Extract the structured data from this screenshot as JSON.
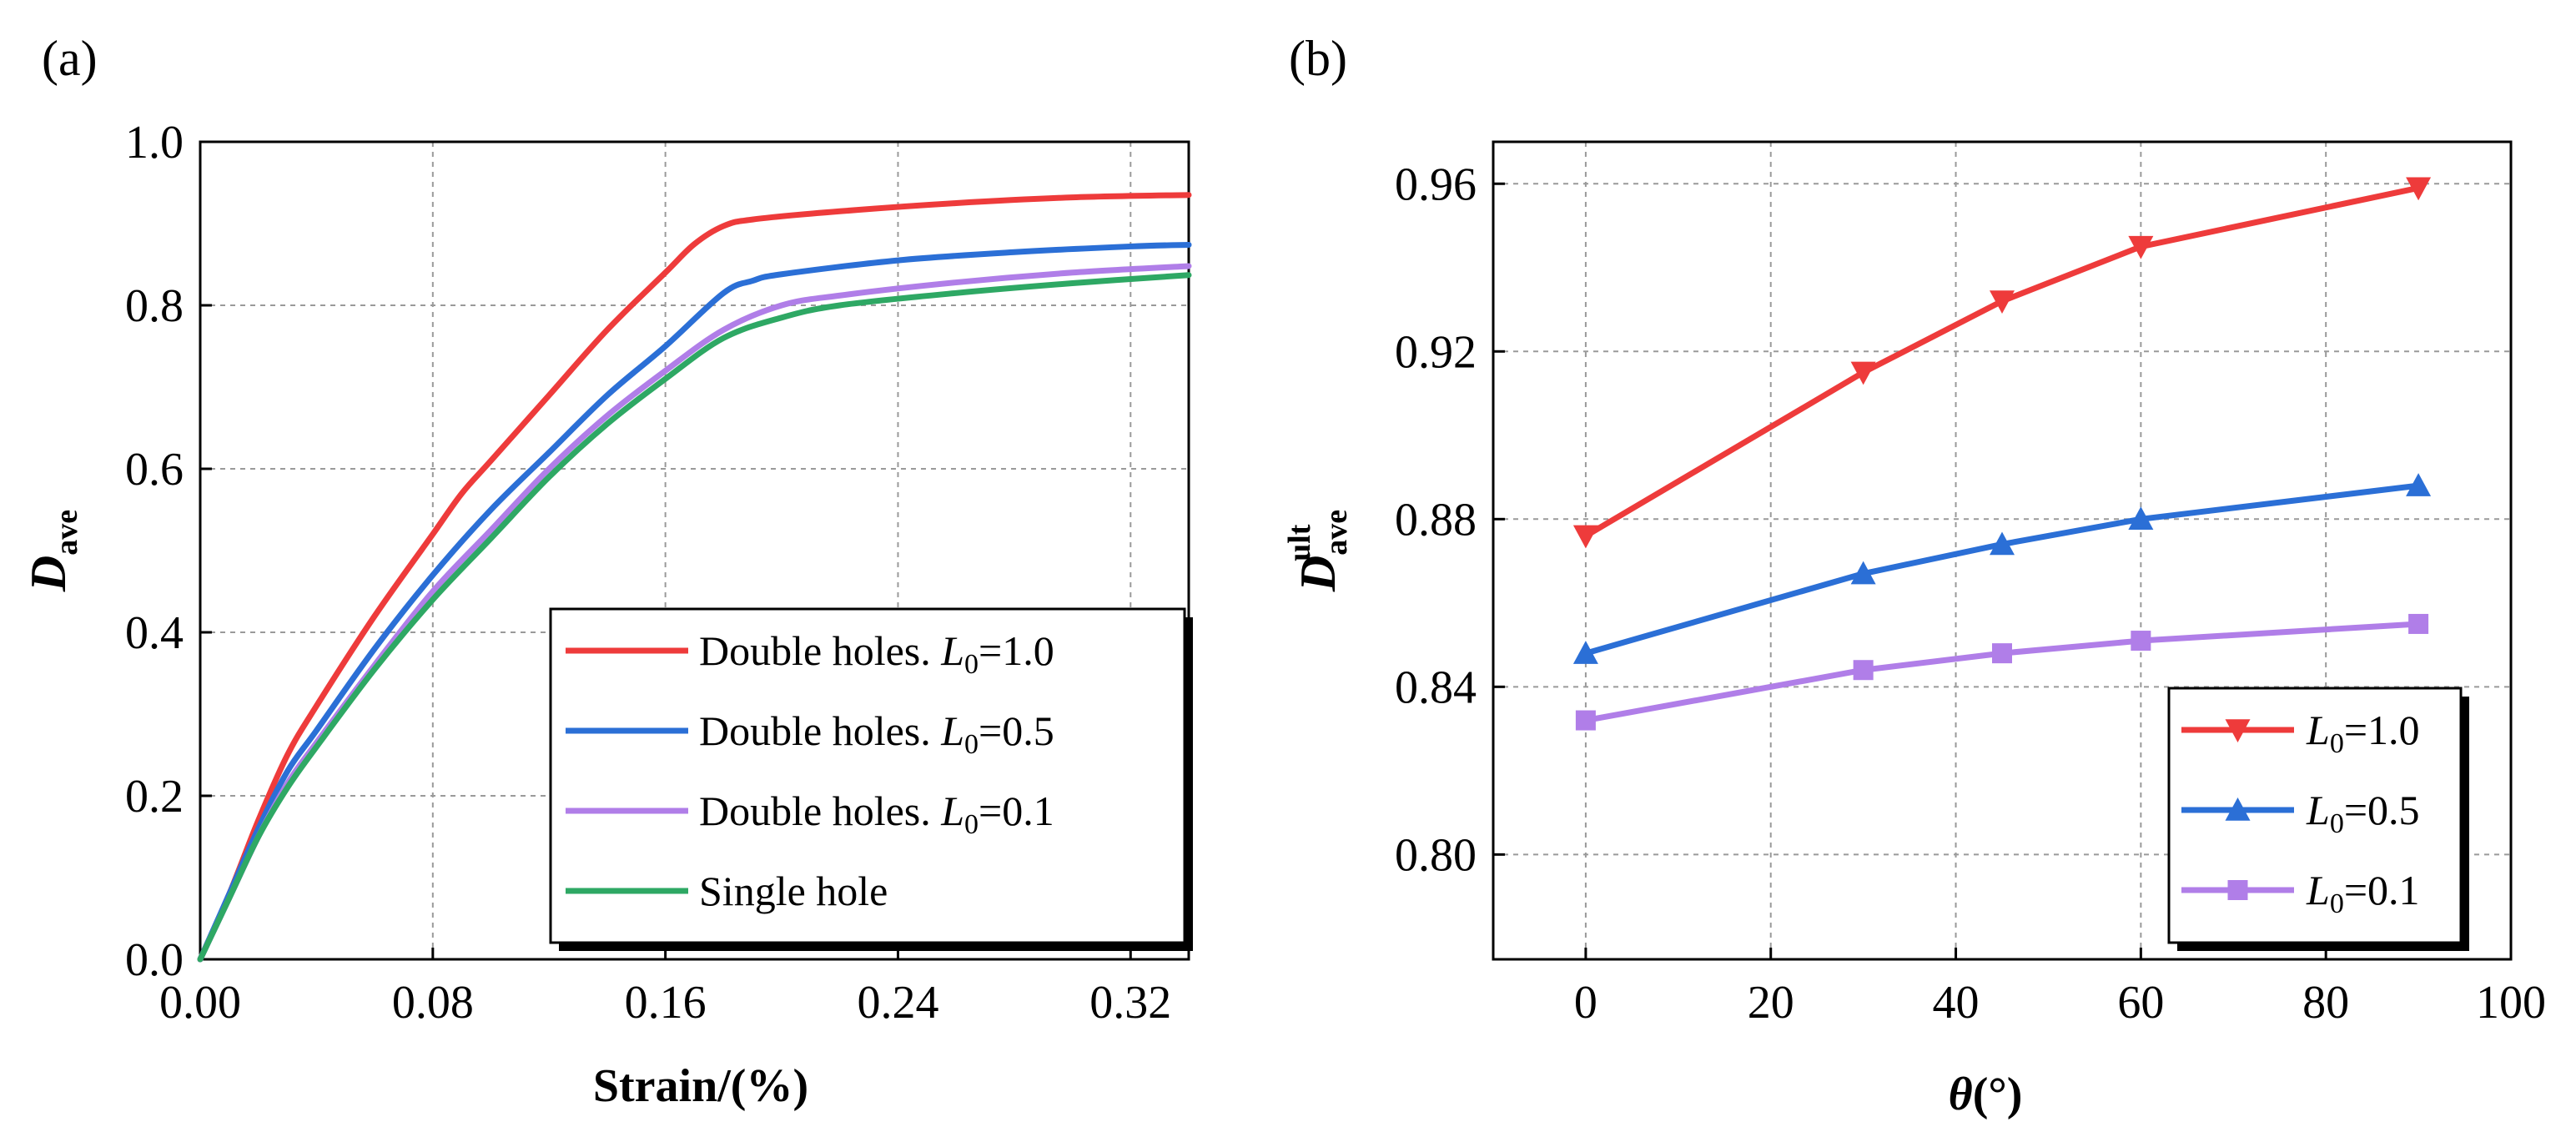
{
  "chart_data": [
    {
      "panel_label": "(a)",
      "type": "line",
      "xlabel": "Strain/(%)",
      "ylabel": "D",
      "ylabel_sub": "ave",
      "xlim": [
        0,
        0.34
      ],
      "ylim": [
        0,
        1.0
      ],
      "xticks": [
        "0.00",
        "0.08",
        "0.16",
        "0.24",
        "0.32"
      ],
      "xtick_values": [
        0,
        0.08,
        0.16,
        0.24,
        0.32
      ],
      "yticks": [
        "0.0",
        "0.2",
        "0.4",
        "0.6",
        "0.8",
        "1.0"
      ],
      "ytick_values": [
        0,
        0.2,
        0.4,
        0.6,
        0.8,
        1.0
      ],
      "grid": true,
      "legend_position": "bottom-right",
      "series": [
        {
          "name": "Double holes. L0=1.0",
          "legend_prefix": "Double holes. ",
          "legend_var": "L",
          "legend_sub": "0",
          "legend_suffix": "=1.0",
          "color": "#ee3b3b",
          "x": [
            0,
            0.01,
            0.02,
            0.03,
            0.04,
            0.06,
            0.08,
            0.09,
            0.1,
            0.12,
            0.14,
            0.16,
            0.17,
            0.18,
            0.19,
            0.22,
            0.26,
            0.3,
            0.34
          ],
          "y": [
            0,
            0.08,
            0.17,
            0.25,
            0.31,
            0.42,
            0.52,
            0.57,
            0.61,
            0.69,
            0.77,
            0.84,
            0.875,
            0.897,
            0.905,
            0.915,
            0.925,
            0.932,
            0.935
          ]
        },
        {
          "name": "Double holes. L0=0.5",
          "legend_prefix": "Double holes. ",
          "legend_var": "L",
          "legend_sub": "0",
          "legend_suffix": "=0.5",
          "color": "#2b6fd6",
          "x": [
            0,
            0.01,
            0.02,
            0.03,
            0.04,
            0.06,
            0.08,
            0.1,
            0.12,
            0.14,
            0.16,
            0.18,
            0.19,
            0.2,
            0.24,
            0.28,
            0.32,
            0.34
          ],
          "y": [
            0,
            0.08,
            0.16,
            0.23,
            0.28,
            0.38,
            0.47,
            0.55,
            0.62,
            0.69,
            0.75,
            0.815,
            0.83,
            0.838,
            0.855,
            0.865,
            0.872,
            0.874
          ]
        },
        {
          "name": "Double holes. L0=0.1",
          "legend_prefix": "Double holes. ",
          "legend_var": "L",
          "legend_sub": "0",
          "legend_suffix": "=0.1",
          "color": "#b07ee8",
          "x": [
            0,
            0.01,
            0.02,
            0.03,
            0.04,
            0.06,
            0.08,
            0.1,
            0.12,
            0.14,
            0.16,
            0.18,
            0.2,
            0.22,
            0.26,
            0.3,
            0.34
          ],
          "y": [
            0,
            0.075,
            0.15,
            0.215,
            0.265,
            0.36,
            0.45,
            0.525,
            0.6,
            0.665,
            0.72,
            0.77,
            0.8,
            0.812,
            0.828,
            0.84,
            0.848
          ]
        },
        {
          "name": "Single hole",
          "legend_prefix": "Single hole",
          "legend_var": "",
          "legend_sub": "",
          "legend_suffix": "",
          "color": "#2ea864",
          "x": [
            0,
            0.01,
            0.02,
            0.03,
            0.04,
            0.06,
            0.08,
            0.1,
            0.12,
            0.14,
            0.16,
            0.18,
            0.2,
            0.22,
            0.26,
            0.3,
            0.34
          ],
          "y": [
            0,
            0.075,
            0.15,
            0.21,
            0.26,
            0.355,
            0.44,
            0.515,
            0.59,
            0.655,
            0.71,
            0.76,
            0.785,
            0.8,
            0.815,
            0.827,
            0.837
          ]
        }
      ]
    },
    {
      "panel_label": "(b)",
      "type": "line",
      "xlabel": "θ(°)",
      "ylabel": "D",
      "ylabel_sub": "ave",
      "ylabel_sup": "ult",
      "xlim": [
        -10,
        100
      ],
      "ylim": [
        0.775,
        0.97
      ],
      "xticks": [
        "0",
        "20",
        "40",
        "60",
        "80",
        "100"
      ],
      "xtick_values": [
        0,
        20,
        40,
        60,
        80,
        100
      ],
      "yticks": [
        "0.80",
        "0.84",
        "0.88",
        "0.92",
        "0.96"
      ],
      "ytick_values": [
        0.8,
        0.84,
        0.88,
        0.92,
        0.96
      ],
      "grid": true,
      "legend_position": "bottom-right",
      "series": [
        {
          "name": "L0=1.0",
          "legend_var": "L",
          "legend_sub": "0",
          "legend_suffix": "=1.0",
          "color": "#ee3b3b",
          "marker": "triangle-down",
          "x": [
            0,
            30,
            45,
            60,
            90
          ],
          "y": [
            0.876,
            0.915,
            0.932,
            0.945,
            0.959
          ]
        },
        {
          "name": "L0=0.5",
          "legend_var": "L",
          "legend_sub": "0",
          "legend_suffix": "=0.5",
          "color": "#2b6fd6",
          "marker": "triangle-up",
          "x": [
            0,
            30,
            45,
            60,
            90
          ],
          "y": [
            0.848,
            0.867,
            0.874,
            0.88,
            0.888
          ]
        },
        {
          "name": "L0=0.1",
          "legend_var": "L",
          "legend_sub": "0",
          "legend_suffix": "=0.1",
          "color": "#b07ee8",
          "marker": "square",
          "x": [
            0,
            30,
            45,
            60,
            90
          ],
          "y": [
            0.832,
            0.844,
            0.848,
            0.851,
            0.855
          ]
        }
      ]
    }
  ]
}
